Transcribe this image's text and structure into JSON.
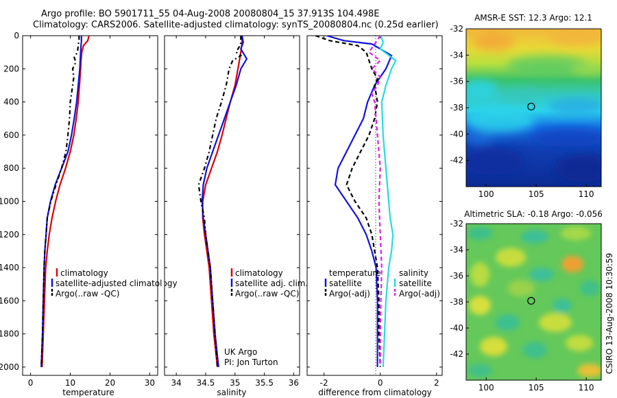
{
  "header": {
    "line1": "Argo profile: BO 5901711_55 04-Aug-2008 20080804_15 37.913S 104.498E",
    "line2": "Climatology: CARS2006. Satellite-adjusted climatology: synTS_20080804.nc (0.25d earlier)"
  },
  "footer": {
    "credit": "CSIRO 13-Aug-2008 10:30:59"
  },
  "colors": {
    "climatology": "#dd0000",
    "satellite": "#1111dd",
    "argo": "#000000",
    "sal_satellite": "#22dddd",
    "sal_argo": "#dd22dd"
  },
  "chart_data": [
    {
      "type": "line",
      "xlabel": "temperature",
      "ylabel": "",
      "xlim": [
        -2,
        32
      ],
      "ylim": [
        0,
        2050
      ],
      "y_reversed": true,
      "xticks": [
        0,
        10,
        20,
        30
      ],
      "yticks": [
        0,
        200,
        400,
        600,
        800,
        1000,
        1200,
        1400,
        1600,
        1800,
        2000
      ],
      "legend": [
        "climatology",
        "satellite-adjusted climatology",
        "Argo(..raw -QC)"
      ],
      "series": [
        {
          "name": "climatology",
          "color": "#dd0000",
          "dash": "solid",
          "points": [
            [
              14.7,
              0
            ],
            [
              14.4,
              30
            ],
            [
              13.3,
              60
            ],
            [
              12.9,
              100
            ],
            [
              12.7,
              150
            ],
            [
              12.6,
              200
            ],
            [
              12.3,
              300
            ],
            [
              12.0,
              400
            ],
            [
              11.5,
              500
            ],
            [
              10.9,
              600
            ],
            [
              10.0,
              700
            ],
            [
              8.8,
              800
            ],
            [
              7.4,
              900
            ],
            [
              6.3,
              1000
            ],
            [
              5.4,
              1100
            ],
            [
              4.7,
              1200
            ],
            [
              4.2,
              1300
            ],
            [
              3.8,
              1400
            ],
            [
              3.5,
              1600
            ],
            [
              3.2,
              1800
            ],
            [
              2.9,
              2000
            ]
          ]
        },
        {
          "name": "satellite-adjusted climatology",
          "color": "#1111dd",
          "dash": "solid",
          "points": [
            [
              12.8,
              0
            ],
            [
              12.8,
              30
            ],
            [
              12.7,
              60
            ],
            [
              12.6,
              100
            ],
            [
              12.5,
              150
            ],
            [
              12.4,
              200
            ],
            [
              12.0,
              300
            ],
            [
              11.6,
              400
            ],
            [
              11.0,
              500
            ],
            [
              10.3,
              600
            ],
            [
              9.4,
              700
            ],
            [
              7.8,
              800
            ],
            [
              6.2,
              900
            ],
            [
              5.0,
              1000
            ],
            [
              4.2,
              1100
            ],
            [
              3.9,
              1200
            ],
            [
              3.6,
              1300
            ],
            [
              3.4,
              1400
            ],
            [
              3.2,
              1600
            ],
            [
              3.0,
              1800
            ],
            [
              2.7,
              2000
            ]
          ]
        },
        {
          "name": "Argo(..raw -QC)",
          "color": "#000000",
          "dash": "6,4,2,4",
          "points": [
            [
              12.2,
              0
            ],
            [
              12.2,
              20
            ],
            [
              12.0,
              60
            ],
            [
              11.8,
              100
            ],
            [
              11.0,
              130
            ],
            [
              11.4,
              160
            ],
            [
              10.6,
              200
            ],
            [
              10.9,
              250
            ],
            [
              10.6,
              300
            ],
            [
              10.0,
              400
            ],
            [
              9.8,
              500
            ],
            [
              9.4,
              600
            ],
            [
              8.9,
              700
            ],
            [
              7.8,
              800
            ],
            [
              6.4,
              900
            ],
            [
              5.1,
              1000
            ],
            [
              4.2,
              1100
            ],
            [
              3.9,
              1200
            ],
            [
              3.6,
              1300
            ],
            [
              3.4,
              1400
            ],
            [
              3.2,
              1600
            ],
            [
              3.0,
              1800
            ],
            [
              2.7,
              2000
            ]
          ]
        }
      ]
    },
    {
      "type": "line",
      "xlabel": "salinity",
      "ylabel": "",
      "xlim": [
        33.8,
        36.1
      ],
      "ylim": [
        0,
        2050
      ],
      "y_reversed": true,
      "xticks": [
        34,
        34.5,
        35,
        35.5,
        36
      ],
      "yticks": [
        0,
        200,
        400,
        600,
        800,
        1000,
        1200,
        1400,
        1600,
        1800,
        2000
      ],
      "legend": [
        "climatology",
        "satellite adj. clim.",
        "Argo(..raw -QC)"
      ],
      "annotation": [
        "UK Argo",
        "PI: Jon Turton"
      ],
      "series": [
        {
          "name": "climatology",
          "color": "#dd0000",
          "dash": "solid",
          "points": [
            [
              35.12,
              0
            ],
            [
              35.12,
              40
            ],
            [
              35.1,
              100
            ],
            [
              35.05,
              200
            ],
            [
              35.0,
              300
            ],
            [
              34.92,
              400
            ],
            [
              34.85,
              500
            ],
            [
              34.78,
              600
            ],
            [
              34.7,
              700
            ],
            [
              34.6,
              800
            ],
            [
              34.5,
              900
            ],
            [
              34.45,
              1000
            ],
            [
              34.45,
              1100
            ],
            [
              34.48,
              1200
            ],
            [
              34.52,
              1300
            ],
            [
              34.56,
              1400
            ],
            [
              34.6,
              1600
            ],
            [
              34.64,
              1800
            ],
            [
              34.7,
              2000
            ]
          ]
        },
        {
          "name": "satellite adj. clim.",
          "color": "#1111dd",
          "dash": "solid",
          "points": [
            [
              35.12,
              0
            ],
            [
              35.14,
              40
            ],
            [
              35.1,
              80
            ],
            [
              35.2,
              140
            ],
            [
              35.1,
              200
            ],
            [
              35.02,
              300
            ],
            [
              34.92,
              400
            ],
            [
              34.82,
              500
            ],
            [
              34.72,
              600
            ],
            [
              34.62,
              700
            ],
            [
              34.52,
              800
            ],
            [
              34.46,
              900
            ],
            [
              34.44,
              1000
            ],
            [
              34.46,
              1100
            ],
            [
              34.5,
              1200
            ],
            [
              34.54,
              1300
            ],
            [
              34.58,
              1400
            ],
            [
              34.62,
              1600
            ],
            [
              34.66,
              1800
            ],
            [
              34.72,
              2000
            ]
          ]
        },
        {
          "name": "Argo(..raw -QC)",
          "color": "#000000",
          "dash": "6,4,2,4",
          "points": [
            [
              35.1,
              0
            ],
            [
              35.1,
              50
            ],
            [
              35.02,
              100
            ],
            [
              35.1,
              120
            ],
            [
              34.96,
              150
            ],
            [
              34.9,
              200
            ],
            [
              34.85,
              300
            ],
            [
              34.77,
              400
            ],
            [
              34.68,
              500
            ],
            [
              34.62,
              600
            ],
            [
              34.56,
              700
            ],
            [
              34.48,
              800
            ],
            [
              34.38,
              900
            ],
            [
              34.42,
              1000
            ],
            [
              34.48,
              1100
            ],
            [
              34.5,
              1200
            ],
            [
              34.54,
              1300
            ],
            [
              34.58,
              1400
            ],
            [
              34.62,
              1600
            ],
            [
              34.66,
              1800
            ],
            [
              34.7,
              2000
            ]
          ]
        }
      ]
    },
    {
      "type": "line",
      "xlabel": "difference from climatology",
      "ylabel": "",
      "xlim": [
        -2.6,
        2.2
      ],
      "ylim": [
        0,
        2050
      ],
      "y_reversed": true,
      "xticks": [
        -2,
        0,
        2
      ],
      "yticks": [
        0,
        200,
        400,
        600,
        800,
        1000,
        1200,
        1400,
        1600,
        1800,
        2000
      ],
      "legend_headers": [
        "temperature",
        "salinity"
      ],
      "legend": [
        "satellite",
        "Argo(-adj)",
        "satellite",
        "Argo(-adj)"
      ],
      "series": [
        {
          "name": "temperature satellite",
          "color": "#1111dd",
          "dash": "solid",
          "points": [
            [
              -1.9,
              0
            ],
            [
              -1.3,
              30
            ],
            [
              -0.3,
              50
            ],
            [
              0.4,
              120
            ],
            [
              0.2,
              200
            ],
            [
              -0.2,
              300
            ],
            [
              -0.45,
              400
            ],
            [
              -0.6,
              500
            ],
            [
              -0.9,
              600
            ],
            [
              -1.2,
              700
            ],
            [
              -1.5,
              800
            ],
            [
              -1.6,
              900
            ],
            [
              -1.2,
              1000
            ],
            [
              -0.8,
              1100
            ],
            [
              -0.5,
              1200
            ],
            [
              -0.3,
              1300
            ],
            [
              -0.15,
              1400
            ],
            [
              -0.1,
              1600
            ],
            [
              -0.1,
              1800
            ],
            [
              -0.1,
              2000
            ]
          ]
        },
        {
          "name": "temperature Argo(-adj)",
          "color": "#000000",
          "dash": "6,4",
          "points": [
            [
              -2.3,
              0
            ],
            [
              -1.8,
              30
            ],
            [
              -0.8,
              60
            ],
            [
              -0.5,
              100
            ],
            [
              -0.3,
              200
            ],
            [
              -0.1,
              260
            ],
            [
              -0.2,
              300
            ],
            [
              -0.1,
              400
            ],
            [
              -0.2,
              500
            ],
            [
              -0.4,
              600
            ],
            [
              -0.7,
              700
            ],
            [
              -1.0,
              800
            ],
            [
              -1.2,
              900
            ],
            [
              -0.9,
              1000
            ],
            [
              -0.5,
              1100
            ],
            [
              -0.3,
              1200
            ],
            [
              -0.2,
              1300
            ],
            [
              -0.1,
              1400
            ],
            [
              -0.05,
              1600
            ],
            [
              -0.05,
              1800
            ],
            [
              0.0,
              2000
            ]
          ]
        },
        {
          "name": "salinity satellite",
          "color": "#22dddd",
          "dash": "solid",
          "points": [
            [
              0.02,
              0
            ],
            [
              0.1,
              40
            ],
            [
              0.0,
              80
            ],
            [
              0.55,
              150
            ],
            [
              0.4,
              200
            ],
            [
              0.2,
              300
            ],
            [
              0.05,
              400
            ],
            [
              0.1,
              600
            ],
            [
              0.2,
              800
            ],
            [
              0.3,
              1000
            ],
            [
              0.35,
              1100
            ],
            [
              0.45,
              1200
            ],
            [
              0.4,
              1300
            ],
            [
              0.3,
              1400
            ],
            [
              0.2,
              1600
            ],
            [
              0.15,
              1800
            ],
            [
              0.1,
              2000
            ]
          ]
        },
        {
          "name": "salinity Argo(-adj)",
          "color": "#dd22dd",
          "dash": "6,4",
          "points": [
            [
              0.0,
              0
            ],
            [
              -0.2,
              50
            ],
            [
              -0.4,
              100
            ],
            [
              0.0,
              150
            ],
            [
              -0.3,
              200
            ],
            [
              0.0,
              250
            ],
            [
              -0.1,
              300
            ],
            [
              -0.3,
              350
            ],
            [
              -0.2,
              400
            ],
            [
              -0.1,
              600
            ],
            [
              0.0,
              800
            ],
            [
              -0.05,
              1000
            ],
            [
              0.0,
              1200
            ],
            [
              0.05,
              1400
            ],
            [
              0.02,
              1600
            ],
            [
              0.0,
              1800
            ],
            [
              0.0,
              2000
            ]
          ]
        }
      ]
    },
    {
      "type": "heatmap",
      "title": "AMSR-E SST: 12.3 Argo: 12.1",
      "xlim": [
        98,
        111.5
      ],
      "ylim": [
        -44,
        -32
      ],
      "xticks": [
        100,
        105,
        110
      ],
      "yticks": [
        -32,
        -34,
        -36,
        -38,
        -40,
        -42
      ],
      "marker": [
        104.498,
        -37.913
      ]
    },
    {
      "type": "heatmap",
      "title": "Altimetric SLA: -0.18 Argo: -0.056",
      "xlim": [
        98,
        111.5
      ],
      "ylim": [
        -44,
        -32
      ],
      "xticks": [
        100,
        105,
        110
      ],
      "yticks": [
        -32,
        -34,
        -36,
        -38,
        -40,
        -42
      ],
      "marker": [
        104.498,
        -37.913
      ]
    }
  ]
}
